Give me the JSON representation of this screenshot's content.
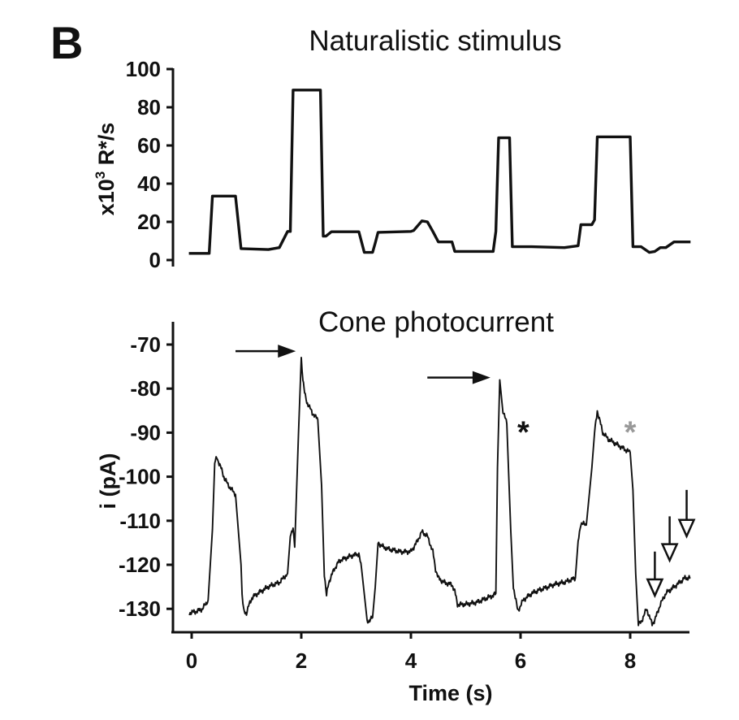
{
  "panel_label": "B",
  "chart_data": [
    {
      "type": "line",
      "title": "Naturalistic stimulus",
      "xlabel": "",
      "ylabel": "x10³ R*/s",
      "ylabel_base": "x10",
      "ylabel_sup": "3",
      "ylabel_unit": " R*/s",
      "xlim": [
        0,
        9.1
      ],
      "ylim": [
        0,
        100
      ],
      "yticks": [
        {
          "value": 0,
          "label": "0"
        },
        {
          "value": 20,
          "label": "20"
        },
        {
          "value": 40,
          "label": "40"
        },
        {
          "value": 60,
          "label": "60"
        },
        {
          "value": 80,
          "label": "80"
        },
        {
          "value": 100,
          "label": "100"
        }
      ],
      "grid": false,
      "series": [
        {
          "x": [
            -0.05,
            0.32,
            0.38,
            0.8,
            0.9,
            1.4,
            1.6,
            1.75,
            1.78,
            1.8,
            1.85,
            2.35,
            2.4,
            2.45,
            2.55,
            2.6,
            3.05,
            3.15,
            3.3,
            3.35,
            3.4,
            4.0,
            4.05,
            4.2,
            4.3,
            4.4,
            4.5,
            4.75,
            4.8,
            5.5,
            5.55,
            5.6,
            5.8,
            5.85,
            6.2,
            6.8,
            7.05,
            7.1,
            7.3,
            7.35,
            7.4,
            8.0,
            8.05,
            8.2,
            8.35,
            8.45,
            8.55,
            8.65,
            8.8,
            8.85,
            9.1
          ],
          "y": [
            3.5,
            3.5,
            33.5,
            33.5,
            6,
            5.5,
            6.5,
            15,
            15,
            15,
            89,
            89,
            12.5,
            12.5,
            14.8,
            14.8,
            14.8,
            4,
            4,
            9,
            14.5,
            15,
            15.5,
            20.5,
            20,
            15,
            9.5,
            9.5,
            4.5,
            4.5,
            15,
            64,
            64,
            7,
            7,
            6.5,
            7.5,
            18.5,
            18.5,
            21,
            64.5,
            64.5,
            7,
            7,
            4,
            4.5,
            6.5,
            6.5,
            9.5,
            9.5,
            9.5
          ]
        }
      ]
    },
    {
      "type": "line",
      "title": "Cone photocurrent",
      "xlabel": "Time (s)",
      "ylabel": "i (pA)",
      "xlim": [
        -0.05,
        9.1
      ],
      "ylim": [
        -135,
        -65
      ],
      "xticks": [
        {
          "value": 0,
          "label": "0"
        },
        {
          "value": 2,
          "label": "2"
        },
        {
          "value": 4,
          "label": "4"
        },
        {
          "value": 6,
          "label": "6"
        },
        {
          "value": 8,
          "label": "8"
        }
      ],
      "yticks": [
        {
          "value": -70,
          "label": "-70"
        },
        {
          "value": -80,
          "label": "-80"
        },
        {
          "value": -90,
          "label": "-90"
        },
        {
          "value": -100,
          "label": "-100"
        },
        {
          "value": -110,
          "label": "-110"
        },
        {
          "value": -120,
          "label": "-120"
        },
        {
          "value": -130,
          "label": "-130"
        }
      ],
      "grid": false,
      "series": [
        {
          "x": [
            -0.05,
            0.1,
            0.2,
            0.3,
            0.38,
            0.42,
            0.46,
            0.5,
            0.55,
            0.6,
            0.7,
            0.8,
            0.9,
            0.92,
            0.95,
            1.0,
            1.05,
            1.1,
            1.2,
            1.4,
            1.6,
            1.75,
            1.8,
            1.85,
            1.88,
            1.95,
            2.0,
            2.03,
            2.06,
            2.1,
            2.2,
            2.3,
            2.37,
            2.42,
            2.46,
            2.5,
            2.6,
            2.7,
            2.9,
            3.05,
            3.1,
            3.2,
            3.3,
            3.35,
            3.4,
            3.5,
            3.6,
            3.8,
            4.0,
            4.1,
            4.2,
            4.3,
            4.4,
            4.45,
            4.5,
            4.6,
            4.75,
            4.8,
            4.85,
            5.0,
            5.2,
            5.4,
            5.5,
            5.55,
            5.58,
            5.62,
            5.68,
            5.75,
            5.82,
            5.87,
            5.95,
            6.05,
            6.2,
            6.4,
            6.6,
            6.8,
            7.0,
            7.05,
            7.1,
            7.2,
            7.3,
            7.35,
            7.4,
            7.45,
            7.5,
            7.6,
            7.8,
            8.0,
            8.05,
            8.1,
            8.15,
            8.2,
            8.3,
            8.4,
            8.45,
            8.55,
            8.65,
            8.75,
            8.85,
            9.0,
            9.1
          ],
          "y": [
            -131,
            -130.5,
            -130,
            -128,
            -112,
            -97,
            -95.5,
            -97,
            -98.5,
            -100.5,
            -102.5,
            -104,
            -120,
            -127,
            -130.5,
            -131,
            -129,
            -127.5,
            -126.5,
            -125,
            -124,
            -122,
            -113,
            -112,
            -116,
            -90,
            -73,
            -78,
            -81,
            -83,
            -85.5,
            -87,
            -102,
            -122,
            -127,
            -124,
            -121,
            -119,
            -118,
            -117.5,
            -121,
            -133,
            -132,
            -125,
            -115,
            -116,
            -116.5,
            -117,
            -117,
            -115,
            -112.5,
            -113.5,
            -117,
            -121,
            -123,
            -124,
            -124.5,
            -126,
            -129,
            -129,
            -128.5,
            -127.5,
            -127,
            -126.5,
            -98,
            -78,
            -85,
            -88,
            -112,
            -125,
            -130.5,
            -128,
            -126.5,
            -125.5,
            -124.5,
            -124,
            -123,
            -115,
            -110.5,
            -111,
            -98,
            -90,
            -85,
            -87.5,
            -90,
            -91.5,
            -93,
            -94.5,
            -103,
            -122,
            -133.5,
            -133,
            -130,
            -133.5,
            -132.5,
            -129,
            -126.5,
            -125.5,
            -124.5,
            -123,
            -123
          ]
        }
      ],
      "annotations": {
        "arrows": [
          {
            "direction": "right",
            "x_from": 0.8,
            "x_to": 1.9,
            "y": -71.5
          },
          {
            "direction": "right",
            "x_from": 4.3,
            "x_to": 5.45,
            "y": -77.5
          }
        ],
        "stars": [
          {
            "text": "*",
            "x": 6.05,
            "y": -88.5,
            "color": "#111111"
          },
          {
            "text": "*",
            "x": 8.0,
            "y": -88.5,
            "color": "#999999"
          }
        ],
        "open_arrows": [
          {
            "x": 8.45,
            "y_tail": -117,
            "y_tip": -127
          },
          {
            "x": 8.72,
            "y_tail": -109,
            "y_tip": -119
          },
          {
            "x": 9.03,
            "y_tail": -103,
            "y_tip": -113.5
          }
        ]
      }
    }
  ],
  "colors": {
    "line": "#111111",
    "annotation_gray": "#999999"
  }
}
